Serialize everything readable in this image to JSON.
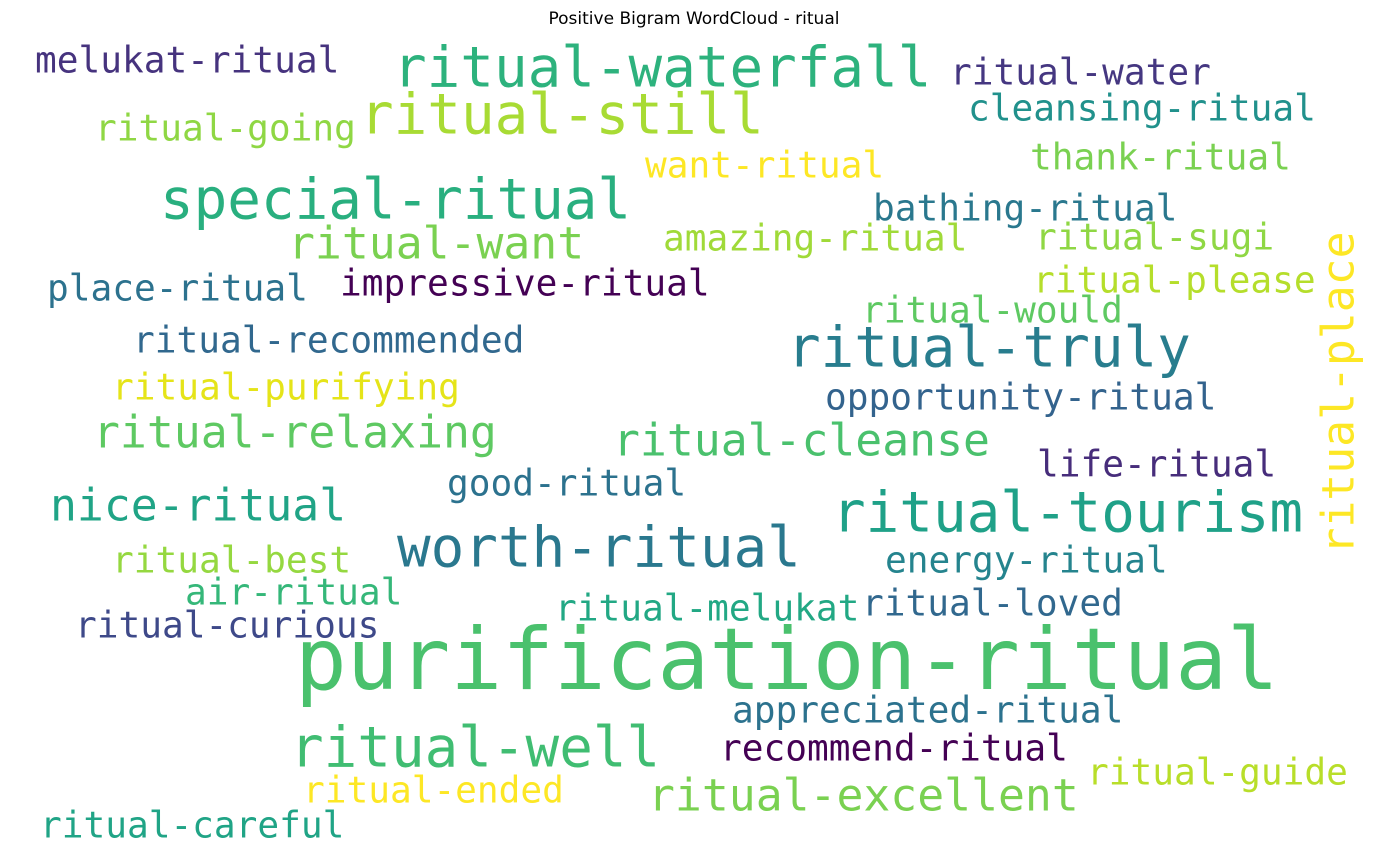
{
  "chart_data": {
    "type": "wordcloud",
    "title": "Positive Bigram WordCloud - ritual",
    "words": [
      {
        "text": "melukat-ritual",
        "weight": 0.42,
        "color": "#46337e"
      },
      {
        "text": "ritual-waterfall",
        "weight": 0.65,
        "color": "#2db27d"
      },
      {
        "text": "ritual-water",
        "weight": 0.42,
        "color": "#453781"
      },
      {
        "text": "ritual-still",
        "weight": 0.65,
        "color": "#a8db34"
      },
      {
        "text": "cleansing-ritual",
        "weight": 0.42,
        "color": "#21918c"
      },
      {
        "text": "ritual-going",
        "weight": 0.42,
        "color": "#8fd744"
      },
      {
        "text": "want-ritual",
        "weight": 0.42,
        "color": "#fde725"
      },
      {
        "text": "thank-ritual",
        "weight": 0.42,
        "color": "#7ad151"
      },
      {
        "text": "special-ritual",
        "weight": 0.65,
        "color": "#29af7f"
      },
      {
        "text": "bathing-ritual",
        "weight": 0.42,
        "color": "#2a788e"
      },
      {
        "text": "ritual-want",
        "weight": 0.52,
        "color": "#7ad151"
      },
      {
        "text": "amazing-ritual",
        "weight": 0.42,
        "color": "#a0da39"
      },
      {
        "text": "ritual-sugi",
        "weight": 0.42,
        "color": "#8fd744"
      },
      {
        "text": "ritual-place",
        "weight": 0.52,
        "color": "#fde725"
      },
      {
        "text": "place-ritual",
        "weight": 0.42,
        "color": "#2c728e"
      },
      {
        "text": "impressive-ritual",
        "weight": 0.42,
        "color": "#440154"
      },
      {
        "text": "ritual-please",
        "weight": 0.42,
        "color": "#b5de2b"
      },
      {
        "text": "ritual-would",
        "weight": 0.42,
        "color": "#5ec962"
      },
      {
        "text": "ritual-recommended",
        "weight": 0.42,
        "color": "#31688e"
      },
      {
        "text": "ritual-truly",
        "weight": 0.65,
        "color": "#287d8e"
      },
      {
        "text": "ritual-purifying",
        "weight": 0.42,
        "color": "#e5e419"
      },
      {
        "text": "opportunity-ritual",
        "weight": 0.42,
        "color": "#33638d"
      },
      {
        "text": "ritual-relaxing",
        "weight": 0.52,
        "color": "#5ec962"
      },
      {
        "text": "ritual-cleanse",
        "weight": 0.52,
        "color": "#4ac16d"
      },
      {
        "text": "life-ritual",
        "weight": 0.42,
        "color": "#472d7b"
      },
      {
        "text": "good-ritual",
        "weight": 0.42,
        "color": "#2c728e"
      },
      {
        "text": "nice-ritual",
        "weight": 0.52,
        "color": "#20a486"
      },
      {
        "text": "ritual-tourism",
        "weight": 0.65,
        "color": "#1fa188"
      },
      {
        "text": "worth-ritual",
        "weight": 0.65,
        "color": "#2a788e"
      },
      {
        "text": "ritual-best",
        "weight": 0.42,
        "color": "#95d840"
      },
      {
        "text": "energy-ritual",
        "weight": 0.42,
        "color": "#25848e"
      },
      {
        "text": "air-ritual",
        "weight": 0.42,
        "color": "#35b779"
      },
      {
        "text": "ritual-melukat",
        "weight": 0.42,
        "color": "#22a884"
      },
      {
        "text": "ritual-loved",
        "weight": 0.42,
        "color": "#31688e"
      },
      {
        "text": "ritual-curious",
        "weight": 0.42,
        "color": "#3e4989"
      },
      {
        "text": "purification-ritual",
        "weight": 1,
        "color": "#4ac16d"
      },
      {
        "text": "appreciated-ritual",
        "weight": 0.42,
        "color": "#2c728e"
      },
      {
        "text": "ritual-well",
        "weight": 0.65,
        "color": "#40bd72"
      },
      {
        "text": "recommend-ritual",
        "weight": 0.42,
        "color": "#440154"
      },
      {
        "text": "ritual-guide",
        "weight": 0.42,
        "color": "#b8de29"
      },
      {
        "text": "ritual-ended",
        "weight": 0.42,
        "color": "#fde725"
      },
      {
        "text": "ritual-excellent",
        "weight": 0.52,
        "color": "#7ad151"
      },
      {
        "text": "ritual-careful",
        "weight": 0.42,
        "color": "#20a486"
      }
    ]
  }
}
